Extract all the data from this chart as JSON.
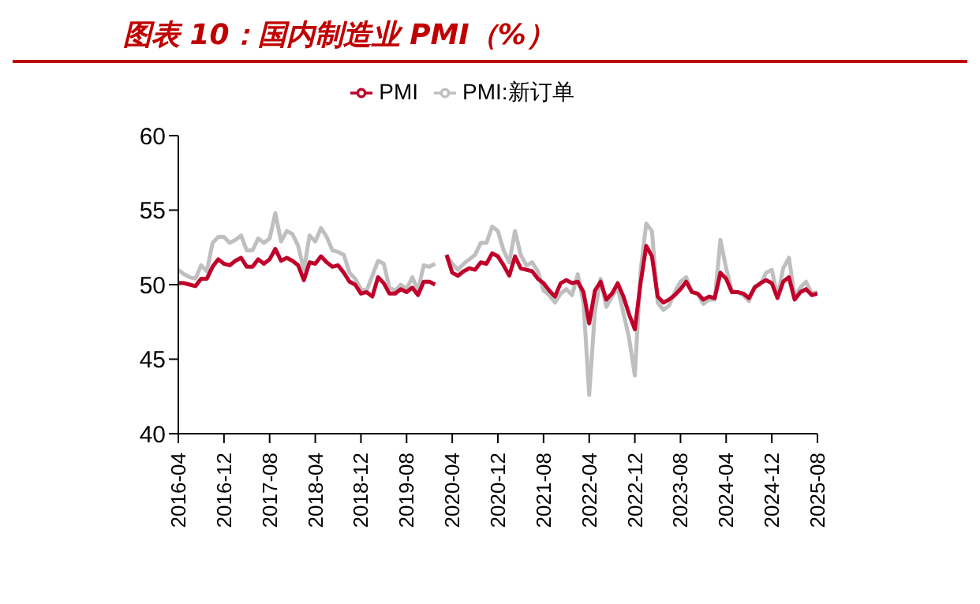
{
  "chart_data": {
    "type": "line",
    "title": "图表 10：国内制造业 PMI（%）",
    "x": [
      "2016-04",
      "2016-05",
      "2016-06",
      "2016-07",
      "2016-08",
      "2016-09",
      "2016-10",
      "2016-11",
      "2016-12",
      "2017-01",
      "2017-02",
      "2017-03",
      "2017-04",
      "2017-05",
      "2017-06",
      "2017-07",
      "2017-08",
      "2017-09",
      "2017-10",
      "2017-11",
      "2017-12",
      "2018-01",
      "2018-02",
      "2018-03",
      "2018-04",
      "2018-05",
      "2018-06",
      "2018-07",
      "2018-08",
      "2018-09",
      "2018-10",
      "2018-11",
      "2018-12",
      "2019-01",
      "2019-02",
      "2019-03",
      "2019-04",
      "2019-05",
      "2019-06",
      "2019-07",
      "2019-08",
      "2019-09",
      "2019-10",
      "2019-11",
      "2019-12",
      "2020-01",
      "2020-02",
      "2020-03",
      "2020-04",
      "2020-05",
      "2020-06",
      "2020-07",
      "2020-08",
      "2020-09",
      "2020-10",
      "2020-11",
      "2020-12",
      "2021-01",
      "2021-02",
      "2021-03",
      "2021-04",
      "2021-05",
      "2021-06",
      "2021-07",
      "2021-08",
      "2021-09",
      "2021-10",
      "2021-11",
      "2021-12",
      "2022-01",
      "2022-02",
      "2022-03",
      "2022-04",
      "2022-05",
      "2022-06",
      "2022-07",
      "2022-08",
      "2022-09",
      "2022-10",
      "2022-11",
      "2022-12",
      "2023-01",
      "2023-02",
      "2023-03",
      "2023-04",
      "2023-05",
      "2023-06",
      "2023-07",
      "2023-08",
      "2023-09",
      "2023-10",
      "2023-11",
      "2023-12",
      "2024-01",
      "2024-02",
      "2024-03",
      "2024-04",
      "2024-05",
      "2024-06",
      "2024-07",
      "2024-08",
      "2024-09",
      "2024-10",
      "2024-11",
      "2024-12",
      "2025-01",
      "2025-02",
      "2025-03",
      "2025-04",
      "2025-05",
      "2025-06",
      "2025-07",
      "2025-08"
    ],
    "series": [
      {
        "name": "PMI",
        "color": "#c0002a",
        "values": [
          50.1,
          50.1,
          50.0,
          49.9,
          50.4,
          50.4,
          51.2,
          51.7,
          51.4,
          51.3,
          51.6,
          51.8,
          51.2,
          51.2,
          51.7,
          51.4,
          51.7,
          52.4,
          51.6,
          51.8,
          51.6,
          51.3,
          50.3,
          51.5,
          51.4,
          51.9,
          51.5,
          51.2,
          51.3,
          50.8,
          50.2,
          50.0,
          49.4,
          49.5,
          49.2,
          50.5,
          50.1,
          49.4,
          49.4,
          49.7,
          49.5,
          49.8,
          49.3,
          50.2,
          50.2,
          50.0,
          null,
          52.0,
          50.8,
          50.6,
          50.9,
          51.1,
          51.0,
          51.5,
          51.4,
          52.1,
          51.9,
          51.3,
          50.6,
          51.9,
          51.1,
          51.0,
          50.9,
          50.4,
          50.1,
          49.6,
          49.2,
          50.1,
          50.3,
          50.1,
          50.2,
          49.5,
          47.4,
          49.6,
          50.2,
          49.0,
          49.4,
          50.1,
          49.2,
          48.0,
          47.0,
          50.1,
          52.6,
          51.9,
          49.2,
          48.8,
          49.0,
          49.3,
          49.7,
          50.2,
          49.5,
          49.4,
          49.0,
          49.2,
          49.1,
          50.8,
          50.4,
          49.5,
          49.5,
          49.4,
          49.1,
          49.8,
          50.1,
          50.3,
          50.1,
          49.1,
          50.2,
          50.5,
          49.0,
          49.5,
          49.7,
          49.3,
          49.4
        ]
      },
      {
        "name": "PMI:新订单",
        "color": "#bfbfbf",
        "values": [
          51.0,
          50.7,
          50.5,
          50.4,
          51.3,
          50.9,
          52.8,
          53.2,
          53.2,
          52.8,
          53.0,
          53.3,
          52.3,
          52.3,
          53.1,
          52.8,
          53.1,
          54.8,
          52.9,
          53.6,
          53.4,
          52.6,
          51.0,
          53.3,
          52.9,
          53.8,
          53.2,
          52.3,
          52.2,
          52.0,
          50.8,
          50.4,
          49.7,
          49.6,
          50.6,
          51.6,
          51.4,
          49.8,
          49.6,
          50.0,
          49.7,
          50.5,
          49.6,
          51.3,
          51.2,
          51.4,
          null,
          52.0,
          51.4,
          51.0,
          51.4,
          51.7,
          52.0,
          52.8,
          52.8,
          53.9,
          53.6,
          52.3,
          51.5,
          53.6,
          52.0,
          51.3,
          51.5,
          50.9,
          49.6,
          49.3,
          48.8,
          49.4,
          49.7,
          49.3,
          50.7,
          48.8,
          42.6,
          48.2,
          50.4,
          48.5,
          49.2,
          49.8,
          48.1,
          46.4,
          43.9,
          50.9,
          54.1,
          53.6,
          48.8,
          48.3,
          48.6,
          49.5,
          50.2,
          50.5,
          49.5,
          49.4,
          48.7,
          49.0,
          49.0,
          53.0,
          51.1,
          49.6,
          49.5,
          49.3,
          48.9,
          49.9,
          50.0,
          50.8,
          51.0,
          49.2,
          51.1,
          51.8,
          49.2,
          49.8,
          50.2,
          49.4,
          49.5
        ]
      }
    ],
    "xlim": [
      "2016-04",
      "2025-08"
    ],
    "xticks": [
      "2016-04",
      "2016-12",
      "2017-08",
      "2018-04",
      "2018-12",
      "2019-08",
      "2020-04",
      "2020-12",
      "2021-08",
      "2022-04",
      "2022-12",
      "2023-08",
      "2024-04",
      "2024-12",
      "2025-08"
    ],
    "ylim": [
      40,
      60
    ],
    "yticks": [
      40,
      45,
      50,
      55,
      60
    ],
    "legend": "top",
    "marker": "none",
    "line_style": "solid"
  }
}
